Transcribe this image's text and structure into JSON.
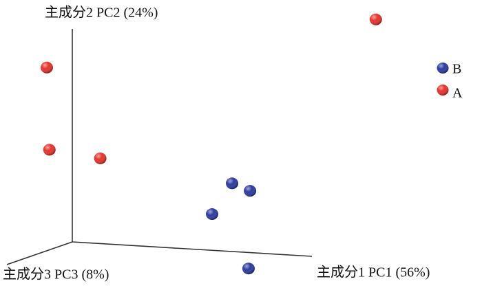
{
  "chart_data": {
    "type": "scatter3d",
    "xlabel": "主成分1 PC1 (56%)",
    "ylabel": "主成分2 PC2 (24%)",
    "zlabel": "主成分3 PC3 (8%)",
    "xlim": [
      0,
      6
    ],
    "ylim": [
      0,
      10
    ],
    "zlim": [
      0,
      10
    ],
    "legend": "top-right",
    "series": [
      {
        "name": "B",
        "color": "#2b3a9e",
        "x": [
          4.0,
          4.45,
          3.5,
          4.74
        ],
        "y": [
          3.2,
          2.9,
          1.7,
          -0.5
        ],
        "z": [
          0,
          0,
          0,
          2
        ]
      },
      {
        "name": "A",
        "color": "#e5322b",
        "x": [
          7.6,
          0,
          0,
          0.7
        ],
        "y": [
          11.3,
          8.6,
          4.7,
          4.0
        ],
        "z": [
          0,
          3.9,
          3.5,
          0
        ]
      }
    ]
  }
}
